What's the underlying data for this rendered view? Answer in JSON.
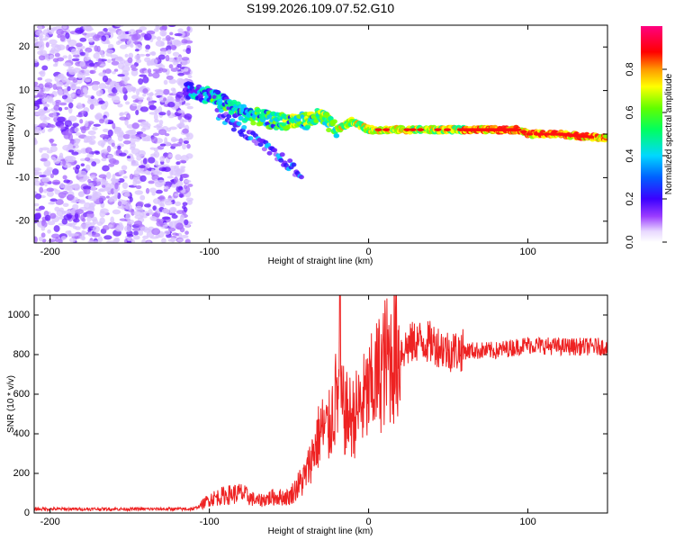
{
  "title": "S199.2026.109.07.52.G10",
  "chart_data": [
    {
      "type": "heatmap",
      "name": "spectrogram",
      "xlabel": "Height of straight line (km)",
      "ylabel": "Frequency (Hz)",
      "xlim": [
        -210,
        150
      ],
      "ylim": [
        -25,
        25
      ],
      "xticks": [
        -200,
        -100,
        0,
        100
      ],
      "yticks": [
        -20,
        -10,
        0,
        10,
        20
      ],
      "colorbar": {
        "label": "Normalized spectral amplitude",
        "range": [
          0,
          1
        ],
        "ticks": [
          0.0,
          0.2,
          0.4,
          0.6,
          0.8
        ]
      },
      "ridge": {
        "x": [
          -115,
          -100,
          -90,
          -80,
          -70,
          -60,
          -50,
          -40,
          -30,
          -20,
          -10,
          0,
          10,
          20,
          40,
          60,
          80,
          95,
          100,
          120,
          150
        ],
        "y": [
          10,
          9,
          7,
          5,
          4,
          3,
          3,
          3,
          4,
          1,
          3,
          1,
          1,
          1,
          1,
          1,
          1,
          1,
          0,
          0,
          -1
        ]
      },
      "secondary_ridge": {
        "x": [
          -95,
          -80,
          -65,
          -50,
          -42
        ],
        "y": [
          5,
          1,
          -3,
          -7,
          -10
        ]
      },
      "noise_region": {
        "x_range": [
          -210,
          -112
        ],
        "y_range": [
          -25,
          25
        ]
      }
    },
    {
      "type": "line",
      "name": "snr",
      "xlabel": "Height of straight line (km)",
      "ylabel": "SNR (10 * v/v)",
      "xlim": [
        -210,
        150
      ],
      "ylim": [
        0,
        1100
      ],
      "xticks": [
        -200,
        -100,
        0,
        100
      ],
      "yticks": [
        0,
        200,
        400,
        600,
        800,
        1000
      ],
      "color": "#ee2222",
      "envelope": {
        "x": [
          -210,
          -110,
          -105,
          -100,
          -90,
          -80,
          -70,
          -60,
          -50,
          -40,
          -35,
          -30,
          -25,
          -20,
          -15,
          -10,
          0,
          10,
          20,
          30,
          40,
          50,
          60,
          80,
          100,
          120,
          150
        ],
        "y": [
          20,
          20,
          40,
          70,
          90,
          100,
          60,
          80,
          80,
          180,
          300,
          420,
          420,
          600,
          500,
          480,
          600,
          760,
          820,
          870,
          860,
          820,
          820,
          820,
          850,
          840,
          840
        ]
      },
      "spike": {
        "x": -18,
        "y": 1100
      }
    }
  ]
}
